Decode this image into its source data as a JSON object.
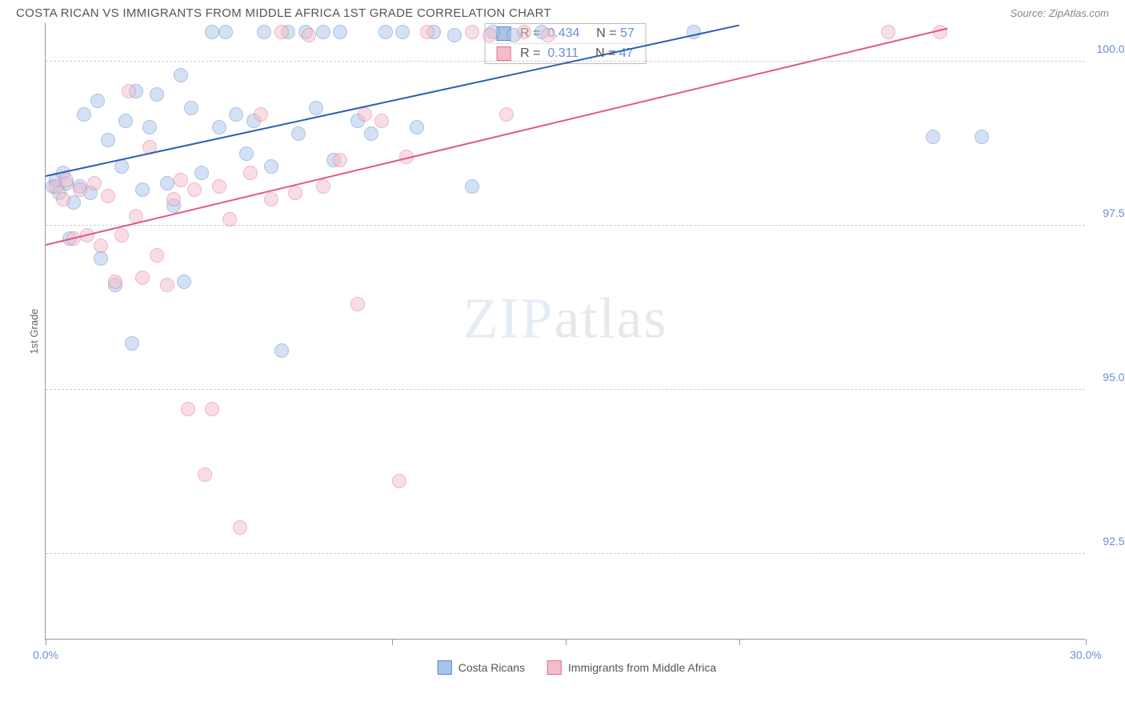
{
  "header": {
    "title": "COSTA RICAN VS IMMIGRANTS FROM MIDDLE AFRICA 1ST GRADE CORRELATION CHART",
    "source_prefix": "Source: ",
    "source": "ZipAtlas.com"
  },
  "chart": {
    "type": "scatter",
    "ylabel": "1st Grade",
    "xlim": [
      0,
      30
    ],
    "ylim": [
      91.2,
      100.6
    ],
    "ytick_vals": [
      92.5,
      95.0,
      97.5,
      100.0
    ],
    "ytick_labels": [
      "92.5%",
      "95.0%",
      "97.5%",
      "100.0%"
    ],
    "xtick_vals": [
      0,
      10,
      15,
      20,
      30
    ],
    "xtick_labels": {
      "0": "0.0%",
      "30": "30.0%"
    },
    "grid_color": "#cccccc",
    "axis_color": "#999999",
    "background": "#ffffff",
    "marker_radius": 9,
    "marker_opacity": 0.5,
    "watermark": "ZIPatlas",
    "series": [
      {
        "name": "Costa Ricans",
        "color_fill": "#a9c4ea",
        "color_stroke": "#5d87c8",
        "R": "0.434",
        "N": "57",
        "regression": {
          "x1": 0,
          "y1": 98.25,
          "x2": 20,
          "y2": 100.55,
          "color": "#2d5fb5"
        },
        "points": [
          [
            0.2,
            98.1
          ],
          [
            0.3,
            98.2
          ],
          [
            0.4,
            98.0
          ],
          [
            0.5,
            98.3
          ],
          [
            0.6,
            98.15
          ],
          [
            0.7,
            97.3
          ],
          [
            0.8,
            97.85
          ],
          [
            1.0,
            98.1
          ],
          [
            1.1,
            99.2
          ],
          [
            1.3,
            98.0
          ],
          [
            1.5,
            99.4
          ],
          [
            1.6,
            97.0
          ],
          [
            1.8,
            98.8
          ],
          [
            2.0,
            96.6
          ],
          [
            2.2,
            98.4
          ],
          [
            2.3,
            99.1
          ],
          [
            2.5,
            95.7
          ],
          [
            2.6,
            99.55
          ],
          [
            2.8,
            98.05
          ],
          [
            3.0,
            99.0
          ],
          [
            3.2,
            99.5
          ],
          [
            3.5,
            98.15
          ],
          [
            3.7,
            97.8
          ],
          [
            3.9,
            99.8
          ],
          [
            4.0,
            96.65
          ],
          [
            4.2,
            99.3
          ],
          [
            4.5,
            98.3
          ],
          [
            4.8,
            100.45
          ],
          [
            5.0,
            99.0
          ],
          [
            5.2,
            100.45
          ],
          [
            5.5,
            99.2
          ],
          [
            5.8,
            98.6
          ],
          [
            6.0,
            99.1
          ],
          [
            6.3,
            100.45
          ],
          [
            6.5,
            98.4
          ],
          [
            6.8,
            95.6
          ],
          [
            7.0,
            100.45
          ],
          [
            7.3,
            98.9
          ],
          [
            7.5,
            100.45
          ],
          [
            7.8,
            99.3
          ],
          [
            8.0,
            100.45
          ],
          [
            8.3,
            98.5
          ],
          [
            8.5,
            100.45
          ],
          [
            9.0,
            99.1
          ],
          [
            9.4,
            98.9
          ],
          [
            9.8,
            100.45
          ],
          [
            10.3,
            100.45
          ],
          [
            10.7,
            99.0
          ],
          [
            11.2,
            100.45
          ],
          [
            11.8,
            100.4
          ],
          [
            12.3,
            98.1
          ],
          [
            12.9,
            100.45
          ],
          [
            13.5,
            100.4
          ],
          [
            14.3,
            100.45
          ],
          [
            18.7,
            100.45
          ],
          [
            25.6,
            98.85
          ],
          [
            27.0,
            98.85
          ]
        ]
      },
      {
        "name": "Immigrants from Middle Africa",
        "color_fill": "#f4bccb",
        "color_stroke": "#e36f91",
        "R": "0.311",
        "N": "47",
        "regression": {
          "x1": 0,
          "y1": 97.2,
          "x2": 26,
          "y2": 100.5,
          "color": "#e05a85"
        },
        "points": [
          [
            0.3,
            98.1
          ],
          [
            0.5,
            97.9
          ],
          [
            0.6,
            98.2
          ],
          [
            0.8,
            97.3
          ],
          [
            1.0,
            98.05
          ],
          [
            1.2,
            97.35
          ],
          [
            1.4,
            98.15
          ],
          [
            1.6,
            97.2
          ],
          [
            1.8,
            97.95
          ],
          [
            2.0,
            96.65
          ],
          [
            2.2,
            97.35
          ],
          [
            2.4,
            99.55
          ],
          [
            2.6,
            97.65
          ],
          [
            2.8,
            96.7
          ],
          [
            3.0,
            98.7
          ],
          [
            3.2,
            97.05
          ],
          [
            3.5,
            96.6
          ],
          [
            3.7,
            97.9
          ],
          [
            3.9,
            98.2
          ],
          [
            4.1,
            94.7
          ],
          [
            4.3,
            98.05
          ],
          [
            4.6,
            93.7
          ],
          [
            4.8,
            94.7
          ],
          [
            5.0,
            98.1
          ],
          [
            5.3,
            97.6
          ],
          [
            5.6,
            92.9
          ],
          [
            5.9,
            98.3
          ],
          [
            6.2,
            99.2
          ],
          [
            6.5,
            97.9
          ],
          [
            6.8,
            100.45
          ],
          [
            7.2,
            98.0
          ],
          [
            7.6,
            100.4
          ],
          [
            8.0,
            98.1
          ],
          [
            8.5,
            98.5
          ],
          [
            9.0,
            96.3
          ],
          [
            9.2,
            99.2
          ],
          [
            9.7,
            99.1
          ],
          [
            10.2,
            93.6
          ],
          [
            10.4,
            98.55
          ],
          [
            11.0,
            100.45
          ],
          [
            12.3,
            100.45
          ],
          [
            12.8,
            100.4
          ],
          [
            13.3,
            99.2
          ],
          [
            13.8,
            100.45
          ],
          [
            14.5,
            100.4
          ],
          [
            24.3,
            100.45
          ],
          [
            25.8,
            100.45
          ]
        ]
      }
    ],
    "stats_box": {
      "r_label": "R = ",
      "n_label": "N = "
    },
    "legend_swatch_border": "1px"
  }
}
